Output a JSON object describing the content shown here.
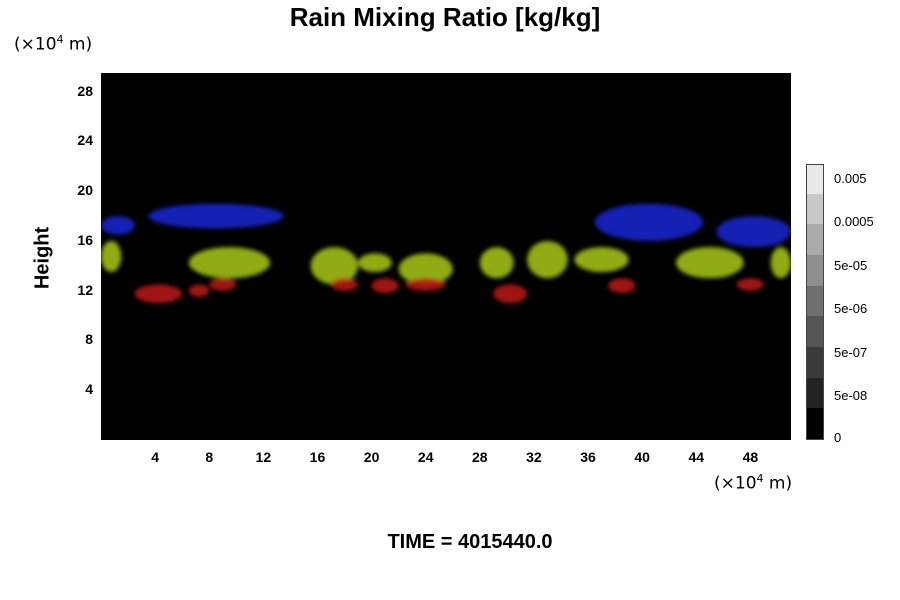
{
  "chart_data": {
    "type": "heatmap",
    "title": "Rain Mixing Ratio [kg/kg]",
    "ylabel": "Height",
    "xlabel": "",
    "y_unit": "(×10⁴ m)",
    "x_unit": "(×10⁴ m)",
    "xlim": [
      0,
      51
    ],
    "ylim": [
      0,
      29.5
    ],
    "x_ticks": [
      "4",
      "8",
      "12",
      "16",
      "20",
      "24",
      "28",
      "32",
      "36",
      "40",
      "44",
      "48"
    ],
    "y_ticks": [
      "4",
      "8",
      "12",
      "16",
      "20",
      "24",
      "28"
    ],
    "colorbar": {
      "levels": [
        "0",
        "5e-08",
        "5e-07",
        "5e-06",
        "5e-05",
        "0.0005",
        "0.005"
      ],
      "colors": [
        "#000000",
        "#222222",
        "#3a3a3a",
        "#555555",
        "#707070",
        "#8e8e8e",
        "#aaaaaa",
        "#c8c8c8",
        "#e8e8e8"
      ]
    },
    "layer_colors": {
      "upper": "#1a22c8",
      "middle": "#9fbf1a",
      "lower": "#b01818"
    },
    "regions": [
      {
        "layer": "upper",
        "x": [
          0,
          2.5
        ],
        "y": [
          16.5,
          18.0
        ]
      },
      {
        "layer": "upper",
        "x": [
          3.5,
          13.5
        ],
        "y": [
          17.0,
          19.0
        ]
      },
      {
        "layer": "upper",
        "x": [
          36.5,
          44.5
        ],
        "y": [
          16.0,
          19.0
        ]
      },
      {
        "layer": "upper",
        "x": [
          45.5,
          51
        ],
        "y": [
          15.5,
          18.0
        ]
      },
      {
        "layer": "middle",
        "x": [
          0,
          1.5
        ],
        "y": [
          13.5,
          16.0
        ]
      },
      {
        "layer": "middle",
        "x": [
          6.5,
          12.5
        ],
        "y": [
          13.0,
          15.5
        ]
      },
      {
        "layer": "middle",
        "x": [
          15.5,
          19.0
        ],
        "y": [
          12.5,
          15.5
        ]
      },
      {
        "layer": "middle",
        "x": [
          19.0,
          21.5
        ],
        "y": [
          13.5,
          15.0
        ]
      },
      {
        "layer": "middle",
        "x": [
          22.0,
          26.0
        ],
        "y": [
          12.5,
          15.0
        ]
      },
      {
        "layer": "middle",
        "x": [
          28.0,
          30.5
        ],
        "y": [
          13.0,
          15.5
        ]
      },
      {
        "layer": "middle",
        "x": [
          31.5,
          34.5
        ],
        "y": [
          13.0,
          16.0
        ]
      },
      {
        "layer": "middle",
        "x": [
          35.0,
          39.0
        ],
        "y": [
          13.5,
          15.5
        ]
      },
      {
        "layer": "middle",
        "x": [
          42.5,
          47.5
        ],
        "y": [
          13.0,
          15.5
        ]
      },
      {
        "layer": "middle",
        "x": [
          49.5,
          51.0
        ],
        "y": [
          13.0,
          15.5
        ]
      },
      {
        "layer": "lower",
        "x": [
          2.5,
          6.0
        ],
        "y": [
          11.0,
          12.5
        ]
      },
      {
        "layer": "lower",
        "x": [
          6.5,
          8.0
        ],
        "y": [
          11.5,
          12.5
        ]
      },
      {
        "layer": "lower",
        "x": [
          8.0,
          10.0
        ],
        "y": [
          12.0,
          13.0
        ]
      },
      {
        "layer": "lower",
        "x": [
          17.0,
          19.0
        ],
        "y": [
          12.0,
          13.0
        ]
      },
      {
        "layer": "lower",
        "x": [
          20.0,
          22.0
        ],
        "y": [
          11.8,
          13.0
        ]
      },
      {
        "layer": "lower",
        "x": [
          22.5,
          25.5
        ],
        "y": [
          12.0,
          13.0
        ]
      },
      {
        "layer": "lower",
        "x": [
          29.0,
          31.5
        ],
        "y": [
          11.0,
          12.5
        ]
      },
      {
        "layer": "lower",
        "x": [
          37.5,
          39.5
        ],
        "y": [
          11.8,
          13.0
        ]
      },
      {
        "layer": "lower",
        "x": [
          47.0,
          49.0
        ],
        "y": [
          12.0,
          13.0
        ]
      }
    ]
  },
  "time_label": "TIME = 4015440.0"
}
